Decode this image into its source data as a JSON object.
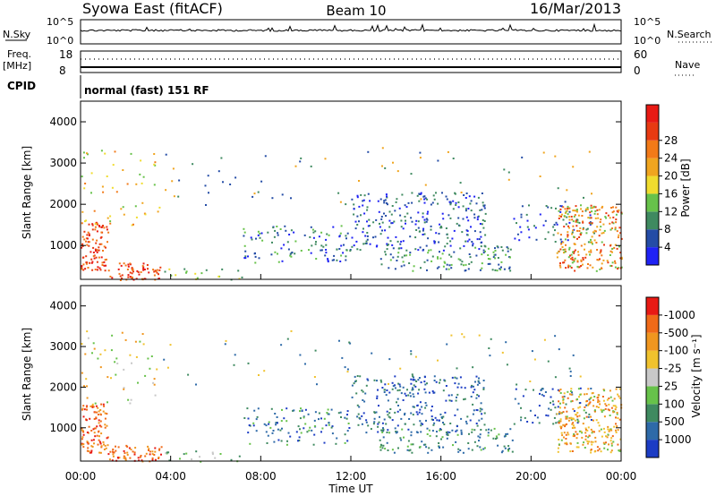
{
  "header": {
    "title": "Syowa East (fitACF)",
    "beam": "Beam 10",
    "date": "16/Mar/2013"
  },
  "status_panels": {
    "nsky_label": "N.Sky",
    "nsky_ticks": [
      "10^5",
      "10^0"
    ],
    "nsearch_label": "N.Search",
    "nsearch_ticks": [
      "10^5",
      "10^0"
    ],
    "freq_label": "Freq.",
    "freq_unit": "[MHz]",
    "freq_ticks": [
      "18",
      "8"
    ],
    "nave_label": "Nave",
    "nave_ticks": [
      "60",
      "0"
    ],
    "cpid_label": "CPID",
    "cpid_text": "normal (fast) 151 RF"
  },
  "chart_data": [
    {
      "type": "heatmap",
      "name": "power",
      "ylabel": "Slant Range [km]",
      "y_ticks": [
        "1000",
        "2000",
        "3000",
        "4000"
      ],
      "ylim": [
        180,
        4500
      ],
      "xlim": [
        "00:00",
        "00:00"
      ],
      "colorbar": {
        "label": "Power [dB]",
        "ticks": [
          "4",
          "8",
          "12",
          "16",
          "20",
          "24",
          "28"
        ],
        "colors": [
          "#1f22f5",
          "#244ca6",
          "#3f8a60",
          "#67c24a",
          "#f0dc2e",
          "#f0a51f",
          "#f27a18",
          "#e83a12",
          "#e81a14"
        ]
      }
    },
    {
      "type": "heatmap",
      "name": "velocity",
      "ylabel": "Slant Range [km]",
      "y_ticks": [
        "1000",
        "2000",
        "3000",
        "4000"
      ],
      "ylim": [
        180,
        4500
      ],
      "xlim": [
        "00:00",
        "00:00"
      ],
      "xlabel": "Time UT",
      "x_ticks": [
        "00:00",
        "04:00",
        "08:00",
        "12:00",
        "16:00",
        "20:00",
        "00:00"
      ],
      "colorbar": {
        "label": "Velocity [m s⁻¹]",
        "ticks": [
          "1000",
          "500",
          "100",
          "25",
          "-25",
          "-100",
          "-500",
          "-1000"
        ],
        "colors": [
          "#1c3cc4",
          "#2e6aa8",
          "#3f8a60",
          "#67c24a",
          "#c8c8c8",
          "#f0c22e",
          "#f0961f",
          "#f06a18",
          "#e81a14"
        ]
      }
    }
  ]
}
